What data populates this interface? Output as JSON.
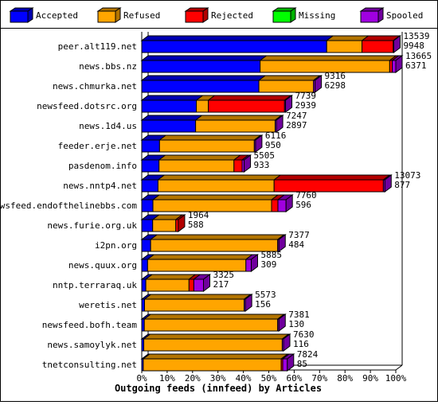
{
  "chart_data": {
    "type": "stacked-bar-3d",
    "orientation": "horizontal",
    "x_label": "Outgoing feeds (innfeed) by Articles",
    "categories": [
      "peer.alt119.net",
      "news.bbs.nz",
      "news.chmurka.net",
      "newsfeed.dotsrc.org",
      "news.1d4.us",
      "feeder.erje.net",
      "pasdenom.info",
      "news.nntp4.net",
      "newsfeed.endofthelinebbs.com",
      "news.furie.org.uk",
      "i2pn.org",
      "news.quux.org",
      "nntp.terraraq.uk",
      "weretis.net",
      "newsfeed.bofh.team",
      "news.samoylyk.net",
      "tnetconsulting.net"
    ],
    "series": [
      {
        "name": "Accepted",
        "color": "#0000ff",
        "values": [
          72.8,
          46.6,
          46.1,
          21.5,
          21.2,
          7.0,
          6.8,
          6.4,
          4.4,
          4.3,
          3.5,
          2.3,
          1.6,
          1.1,
          1.0,
          0.8,
          0.6
        ]
      },
      {
        "name": "Refused",
        "color": "#ffa500",
        "values": [
          13.9,
          51.0,
          21.5,
          4.7,
          31.3,
          37.3,
          29.5,
          45.7,
          46.7,
          9.1,
          50.0,
          38.7,
          17.0,
          39.2,
          52.5,
          54.5,
          54.3
        ]
      },
      {
        "name": "Rejected",
        "color": "#ff0000",
        "values": [
          12.3,
          1.0,
          0,
          30.0,
          0,
          0,
          3.2,
          43.0,
          2.5,
          1.0,
          0,
          0,
          1.9,
          0,
          0,
          0,
          0.6
        ]
      },
      {
        "name": "Missing",
        "color": "#00ff00",
        "values": [
          0,
          0,
          0,
          0,
          0,
          0,
          0,
          0,
          0,
          0,
          0,
          0,
          0,
          0,
          0,
          0,
          0
        ]
      },
      {
        "name": "Spooled",
        "color": "#a000e0",
        "values": [
          0.2,
          1.4,
          0.6,
          0.4,
          0.5,
          0.5,
          0.8,
          0.6,
          3.2,
          0,
          0.5,
          2.1,
          3.8,
          0.5,
          0.5,
          0.5,
          1.8
        ]
      }
    ],
    "offered_labels": [
      13539,
      13665,
      9316,
      7739,
      7247,
      6116,
      5505,
      13073,
      7760,
      1964,
      7377,
      5885,
      3325,
      5573,
      7381,
      7630,
      7824
    ],
    "accepted_labels": [
      9948,
      6371,
      6298,
      2939,
      2897,
      950,
      933,
      877,
      596,
      588,
      484,
      309,
      217,
      156,
      130,
      116,
      85
    ],
    "xlim": [
      0,
      100
    ],
    "xticks": [
      {
        "value": 0,
        "label": "0%"
      },
      {
        "value": 10,
        "label": "10%"
      },
      {
        "value": 20,
        "label": "20%"
      },
      {
        "value": 30,
        "label": "30%"
      },
      {
        "value": 40,
        "label": "40%"
      },
      {
        "value": 50,
        "label": "50%"
      },
      {
        "value": 60,
        "label": "60%"
      },
      {
        "value": 70,
        "label": "70%"
      },
      {
        "value": 80,
        "label": "80%"
      },
      {
        "value": 90,
        "label": "90%"
      },
      {
        "value": 100,
        "label": "100%"
      }
    ],
    "legend": "top"
  }
}
